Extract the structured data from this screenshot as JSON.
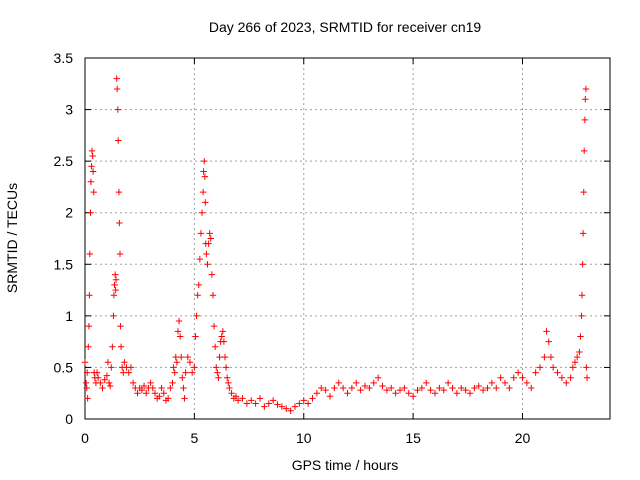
{
  "chart_data": {
    "type": "scatter",
    "title": "Day 266 of 2023, SRMTID for receiver cn19",
    "xlabel": "GPS time / hours",
    "ylabel": "SRMTID / TECUs",
    "xlim": [
      0,
      24
    ],
    "ylim": [
      0,
      3.5
    ],
    "xticks": [
      0,
      5,
      10,
      15,
      20
    ],
    "yticks": [
      0,
      0.5,
      1,
      1.5,
      2,
      2.5,
      3,
      3.5
    ],
    "xtick_labels": [
      "0",
      "5",
      "10",
      "15",
      "20"
    ],
    "ytick_labels": [
      "0",
      "0.5",
      "1",
      "1.5",
      "2",
      "2.5",
      "3",
      "3.5"
    ],
    "grid": true,
    "marker": "+",
    "color": "#ff0000",
    "series": [
      {
        "name": "cn19",
        "points": [
          [
            0.0,
            0.55
          ],
          [
            0.05,
            0.35
          ],
          [
            0.08,
            0.3
          ],
          [
            0.1,
            0.45
          ],
          [
            0.12,
            0.2
          ],
          [
            0.15,
            0.7
          ],
          [
            0.18,
            0.9
          ],
          [
            0.2,
            1.2
          ],
          [
            0.22,
            1.6
          ],
          [
            0.25,
            2.0
          ],
          [
            0.27,
            2.3
          ],
          [
            0.3,
            2.45
          ],
          [
            0.32,
            2.6
          ],
          [
            0.35,
            2.55
          ],
          [
            0.37,
            2.4
          ],
          [
            0.4,
            2.2
          ],
          [
            0.42,
            0.45
          ],
          [
            0.45,
            0.4
          ],
          [
            0.5,
            0.35
          ],
          [
            0.55,
            0.45
          ],
          [
            0.6,
            0.4
          ],
          [
            0.7,
            0.35
          ],
          [
            0.8,
            0.3
          ],
          [
            0.9,
            0.38
          ],
          [
            1.0,
            0.42
          ],
          [
            1.05,
            0.55
          ],
          [
            1.1,
            0.35
          ],
          [
            1.15,
            0.32
          ],
          [
            1.2,
            0.5
          ],
          [
            1.25,
            0.7
          ],
          [
            1.3,
            1.0
          ],
          [
            1.32,
            1.2
          ],
          [
            1.35,
            1.3
          ],
          [
            1.38,
            1.4
          ],
          [
            1.4,
            1.25
          ],
          [
            1.42,
            1.35
          ],
          [
            1.45,
            3.3
          ],
          [
            1.47,
            3.2
          ],
          [
            1.5,
            3.0
          ],
          [
            1.52,
            2.7
          ],
          [
            1.55,
            2.2
          ],
          [
            1.57,
            1.9
          ],
          [
            1.6,
            1.6
          ],
          [
            1.62,
            0.9
          ],
          [
            1.65,
            0.7
          ],
          [
            1.7,
            0.5
          ],
          [
            1.75,
            0.45
          ],
          [
            1.8,
            0.55
          ],
          [
            1.9,
            0.5
          ],
          [
            2.0,
            0.45
          ],
          [
            2.1,
            0.5
          ],
          [
            2.2,
            0.35
          ],
          [
            2.3,
            0.3
          ],
          [
            2.4,
            0.25
          ],
          [
            2.5,
            0.3
          ],
          [
            2.6,
            0.28
          ],
          [
            2.7,
            0.32
          ],
          [
            2.8,
            0.25
          ],
          [
            2.9,
            0.3
          ],
          [
            3.0,
            0.35
          ],
          [
            3.1,
            0.3
          ],
          [
            3.2,
            0.25
          ],
          [
            3.3,
            0.2
          ],
          [
            3.4,
            0.22
          ],
          [
            3.5,
            0.3
          ],
          [
            3.6,
            0.25
          ],
          [
            3.7,
            0.18
          ],
          [
            3.8,
            0.2
          ],
          [
            3.9,
            0.3
          ],
          [
            4.0,
            0.35
          ],
          [
            4.05,
            0.5
          ],
          [
            4.1,
            0.45
          ],
          [
            4.15,
            0.6
          ],
          [
            4.2,
            0.55
          ],
          [
            4.25,
            0.85
          ],
          [
            4.3,
            0.95
          ],
          [
            4.35,
            0.8
          ],
          [
            4.4,
            0.6
          ],
          [
            4.45,
            0.4
          ],
          [
            4.5,
            0.3
          ],
          [
            4.55,
            0.2
          ],
          [
            4.6,
            0.45
          ],
          [
            4.7,
            0.6
          ],
          [
            4.8,
            0.55
          ],
          [
            4.9,
            0.45
          ],
          [
            5.0,
            0.5
          ],
          [
            5.05,
            0.8
          ],
          [
            5.1,
            1.0
          ],
          [
            5.15,
            1.2
          ],
          [
            5.2,
            1.3
          ],
          [
            5.25,
            1.55
          ],
          [
            5.3,
            1.8
          ],
          [
            5.35,
            2.0
          ],
          [
            5.4,
            2.2
          ],
          [
            5.42,
            2.4
          ],
          [
            5.45,
            2.5
          ],
          [
            5.48,
            2.35
          ],
          [
            5.5,
            2.1
          ],
          [
            5.52,
            1.7
          ],
          [
            5.55,
            1.6
          ],
          [
            5.6,
            1.5
          ],
          [
            5.65,
            1.7
          ],
          [
            5.7,
            1.8
          ],
          [
            5.75,
            1.75
          ],
          [
            5.8,
            1.4
          ],
          [
            5.85,
            1.2
          ],
          [
            5.9,
            0.9
          ],
          [
            5.95,
            0.7
          ],
          [
            6.0,
            0.5
          ],
          [
            6.05,
            0.45
          ],
          [
            6.1,
            0.4
          ],
          [
            6.15,
            0.6
          ],
          [
            6.2,
            0.75
          ],
          [
            6.25,
            0.8
          ],
          [
            6.3,
            0.85
          ],
          [
            6.35,
            0.75
          ],
          [
            6.4,
            0.6
          ],
          [
            6.45,
            0.5
          ],
          [
            6.5,
            0.4
          ],
          [
            6.55,
            0.35
          ],
          [
            6.6,
            0.3
          ],
          [
            6.7,
            0.25
          ],
          [
            6.8,
            0.2
          ],
          [
            6.9,
            0.22
          ],
          [
            7.0,
            0.18
          ],
          [
            7.2,
            0.2
          ],
          [
            7.4,
            0.15
          ],
          [
            7.6,
            0.18
          ],
          [
            7.8,
            0.15
          ],
          [
            8.0,
            0.2
          ],
          [
            8.2,
            0.12
          ],
          [
            8.4,
            0.15
          ],
          [
            8.6,
            0.18
          ],
          [
            8.8,
            0.14
          ],
          [
            9.0,
            0.12
          ],
          [
            9.2,
            0.1
          ],
          [
            9.4,
            0.08
          ],
          [
            9.6,
            0.12
          ],
          [
            9.8,
            0.15
          ],
          [
            10.0,
            0.18
          ],
          [
            10.2,
            0.15
          ],
          [
            10.4,
            0.2
          ],
          [
            10.6,
            0.25
          ],
          [
            10.8,
            0.3
          ],
          [
            11.0,
            0.28
          ],
          [
            11.2,
            0.22
          ],
          [
            11.4,
            0.3
          ],
          [
            11.6,
            0.35
          ],
          [
            11.8,
            0.3
          ],
          [
            12.0,
            0.25
          ],
          [
            12.2,
            0.3
          ],
          [
            12.4,
            0.35
          ],
          [
            12.6,
            0.28
          ],
          [
            12.8,
            0.32
          ],
          [
            13.0,
            0.3
          ],
          [
            13.2,
            0.35
          ],
          [
            13.4,
            0.4
          ],
          [
            13.6,
            0.32
          ],
          [
            13.8,
            0.28
          ],
          [
            14.0,
            0.3
          ],
          [
            14.2,
            0.25
          ],
          [
            14.4,
            0.28
          ],
          [
            14.6,
            0.3
          ],
          [
            14.8,
            0.25
          ],
          [
            15.0,
            0.22
          ],
          [
            15.2,
            0.28
          ],
          [
            15.4,
            0.3
          ],
          [
            15.6,
            0.35
          ],
          [
            15.8,
            0.28
          ],
          [
            16.0,
            0.25
          ],
          [
            16.2,
            0.3
          ],
          [
            16.4,
            0.28
          ],
          [
            16.6,
            0.35
          ],
          [
            16.8,
            0.3
          ],
          [
            17.0,
            0.25
          ],
          [
            17.2,
            0.3
          ],
          [
            17.4,
            0.28
          ],
          [
            17.6,
            0.25
          ],
          [
            17.8,
            0.3
          ],
          [
            18.0,
            0.32
          ],
          [
            18.2,
            0.28
          ],
          [
            18.4,
            0.3
          ],
          [
            18.6,
            0.35
          ],
          [
            18.8,
            0.3
          ],
          [
            19.0,
            0.4
          ],
          [
            19.2,
            0.35
          ],
          [
            19.4,
            0.3
          ],
          [
            19.6,
            0.4
          ],
          [
            19.8,
            0.45
          ],
          [
            20.0,
            0.4
          ],
          [
            20.2,
            0.35
          ],
          [
            20.4,
            0.3
          ],
          [
            20.6,
            0.45
          ],
          [
            20.8,
            0.5
          ],
          [
            21.0,
            0.6
          ],
          [
            21.1,
            0.85
          ],
          [
            21.2,
            0.75
          ],
          [
            21.3,
            0.6
          ],
          [
            21.4,
            0.5
          ],
          [
            21.6,
            0.45
          ],
          [
            21.8,
            0.4
          ],
          [
            22.0,
            0.35
          ],
          [
            22.2,
            0.4
          ],
          [
            22.3,
            0.5
          ],
          [
            22.4,
            0.55
          ],
          [
            22.5,
            0.6
          ],
          [
            22.6,
            0.65
          ],
          [
            22.65,
            0.8
          ],
          [
            22.7,
            1.0
          ],
          [
            22.72,
            1.2
          ],
          [
            22.75,
            1.5
          ],
          [
            22.77,
            1.8
          ],
          [
            22.8,
            2.2
          ],
          [
            22.82,
            2.6
          ],
          [
            22.85,
            2.9
          ],
          [
            22.87,
            3.1
          ],
          [
            22.9,
            3.2
          ],
          [
            22.92,
            0.5
          ],
          [
            22.95,
            0.4
          ]
        ]
      }
    ]
  }
}
